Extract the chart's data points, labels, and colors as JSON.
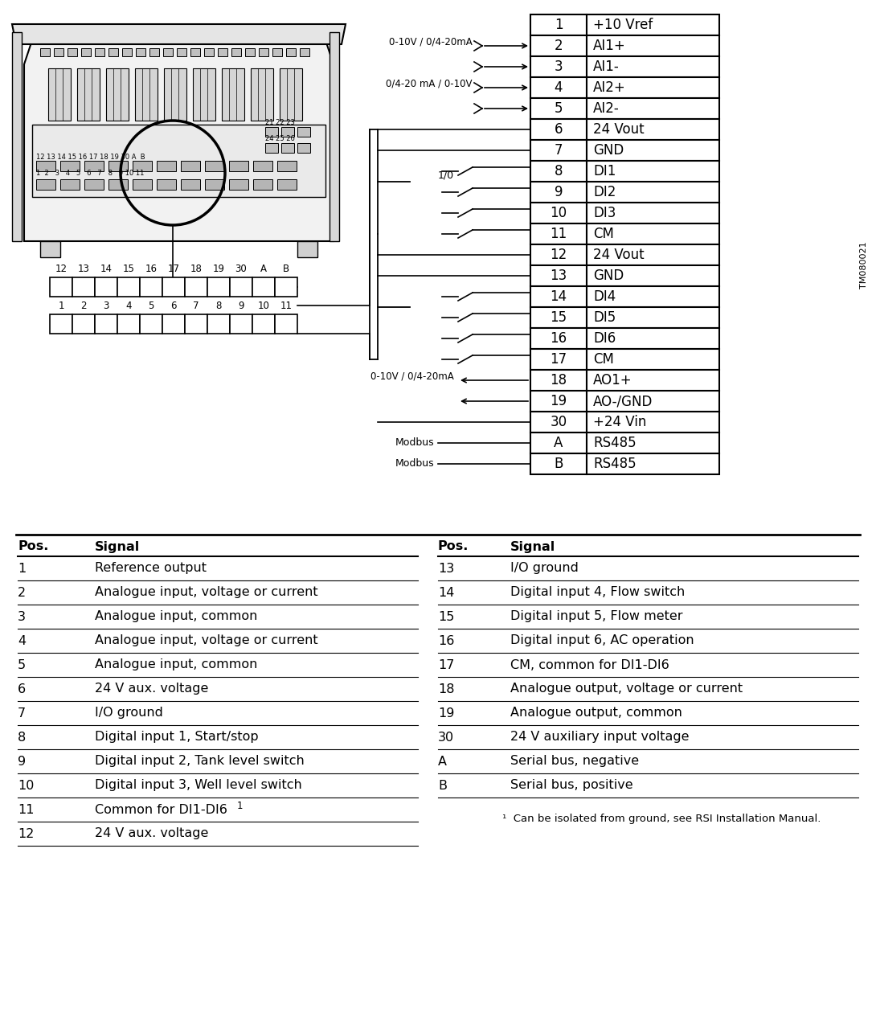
{
  "bg_color": "#ffffff",
  "table_rows": [
    [
      "1",
      "+10 Vref"
    ],
    [
      "2",
      "AI1+"
    ],
    [
      "3",
      "AI1-"
    ],
    [
      "4",
      "AI2+"
    ],
    [
      "5",
      "AI2-"
    ],
    [
      "6",
      "24 Vout"
    ],
    [
      "7",
      "GND"
    ],
    [
      "8",
      "DI1"
    ],
    [
      "9",
      "DI2"
    ],
    [
      "10",
      "DI3"
    ],
    [
      "11",
      "CM"
    ],
    [
      "12",
      "24 Vout"
    ],
    [
      "13",
      "GND"
    ],
    [
      "14",
      "DI4"
    ],
    [
      "15",
      "DI5"
    ],
    [
      "16",
      "DI6"
    ],
    [
      "17",
      "CM"
    ],
    [
      "18",
      "AO1+"
    ],
    [
      "19",
      "AO-/GND"
    ],
    [
      "30",
      "+24 Vin"
    ],
    [
      "A",
      "RS485"
    ],
    [
      "B",
      "RS485"
    ]
  ],
  "label_ai1": "0-10V / 0/4-20mA",
  "label_ai2": "0/4-20 mA / 0-10V",
  "label_ao": "0-10V / 0/4-20mA",
  "label_io": "1/0",
  "modbus_labels": [
    "Modbus",
    "Modbus"
  ],
  "diagram_id": "TM080021",
  "bottom_table_left": {
    "header": [
      "Pos.",
      "Signal"
    ],
    "rows": [
      [
        "1",
        "Reference output"
      ],
      [
        "2",
        "Analogue input, voltage or current"
      ],
      [
        "3",
        "Analogue input, common"
      ],
      [
        "4",
        "Analogue input, voltage or current"
      ],
      [
        "5",
        "Analogue input, common"
      ],
      [
        "6",
        "24 V aux. voltage"
      ],
      [
        "7",
        "I/O ground"
      ],
      [
        "8",
        "Digital input 1, Start/stop"
      ],
      [
        "9",
        "Digital input 2, Tank level switch"
      ],
      [
        "10",
        "Digital input 3, Well level switch"
      ],
      [
        "11",
        "Common for DI1-DI6 ¹"
      ],
      [
        "12",
        "24 V aux. voltage"
      ]
    ]
  },
  "bottom_table_right": {
    "header": [
      "Pos.",
      "Signal"
    ],
    "rows": [
      [
        "13",
        "I/O ground"
      ],
      [
        "14",
        "Digital input 4, Flow switch"
      ],
      [
        "15",
        "Digital input 5, Flow meter"
      ],
      [
        "16",
        "Digital input 6, AC operation"
      ],
      [
        "17",
        "CM, common for DI1-DI6"
      ],
      [
        "18",
        "Analogue output, voltage or current"
      ],
      [
        "19",
        "Analogue output, common"
      ],
      [
        "30",
        "24 V auxiliary input voltage"
      ],
      [
        "A",
        "Serial bus, negative"
      ],
      [
        "B",
        "Serial bus, positive"
      ]
    ]
  },
  "footnote": "¹  Can be isolated from ground, see RSI Installation Manual."
}
